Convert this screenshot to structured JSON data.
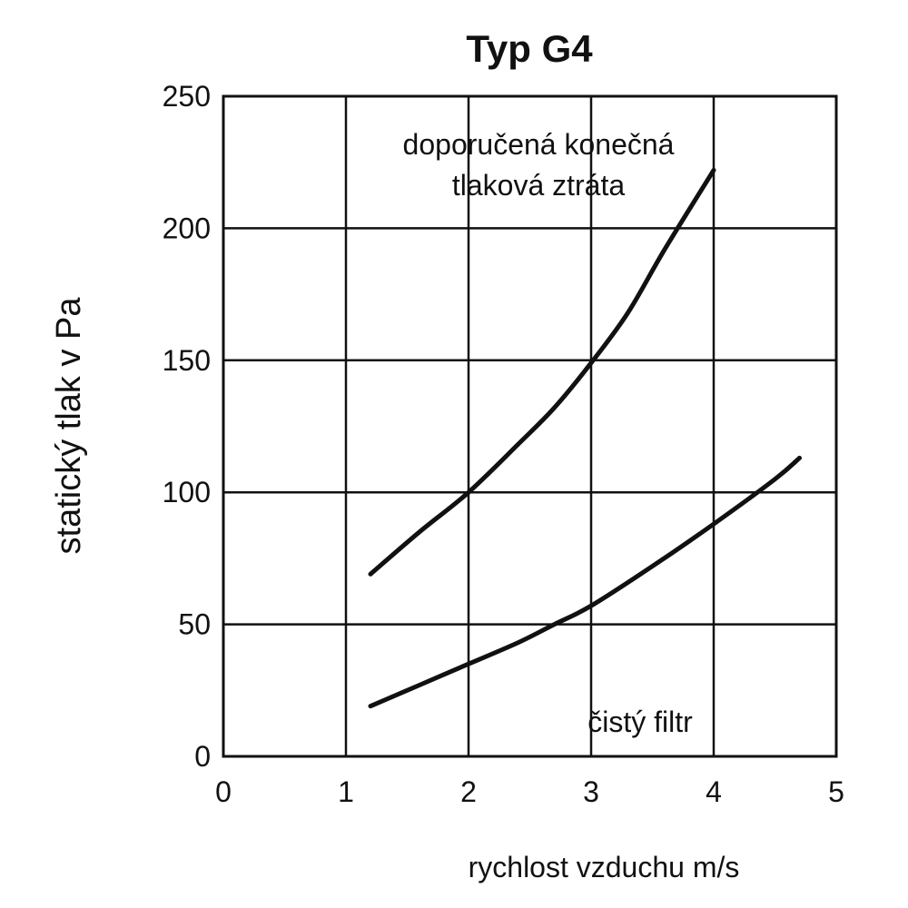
{
  "chart_data": {
    "type": "line",
    "title": "Typ G4",
    "xlabel": "rychlost vzduchu m/s",
    "ylabel": "statický tlak v Pa",
    "xlim": [
      0,
      5
    ],
    "ylim": [
      0,
      250
    ],
    "xticks": [
      0,
      1,
      2,
      3,
      4,
      5
    ],
    "yticks": [
      0,
      50,
      100,
      150,
      200,
      250
    ],
    "grid": true,
    "series": [
      {
        "name": "doporučená konečná tlaková ztráta",
        "x": [
          1.2,
          1.6,
          2.0,
          2.4,
          2.7,
          3.0,
          3.3,
          3.6,
          4.0
        ],
        "y": [
          69,
          85,
          100,
          118,
          132,
          149,
          168,
          192,
          222
        ]
      },
      {
        "name": "čistý filtr",
        "x": [
          1.2,
          1.6,
          2.0,
          2.4,
          2.7,
          3.0,
          3.5,
          4.0,
          4.5,
          4.7
        ],
        "y": [
          19,
          27,
          35,
          43,
          50,
          57,
          72,
          88,
          105,
          113
        ]
      }
    ],
    "annotations": [
      {
        "lines": [
          "doporučená konečná",
          "tlaková ztráta"
        ]
      },
      {
        "lines": [
          "čistý filtr"
        ]
      }
    ]
  }
}
